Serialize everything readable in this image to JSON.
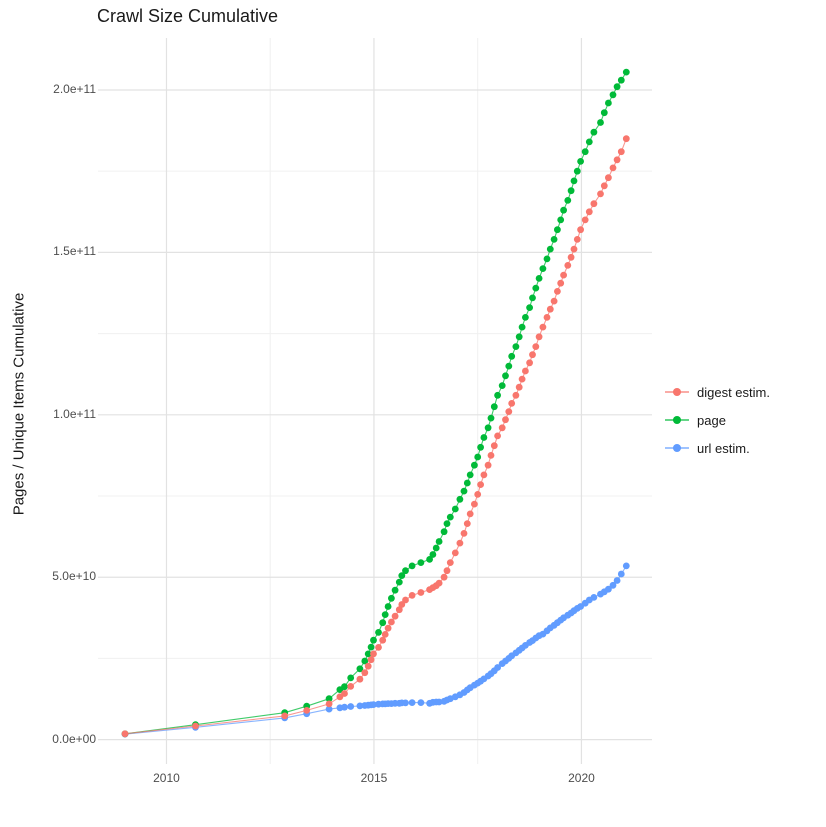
{
  "title": "Crawl Size Cumulative",
  "axes": {
    "y_label": "Pages / Unique Items Cumulative",
    "x_ticks": [
      {
        "label": "2010",
        "value": 2010
      },
      {
        "label": "2015",
        "value": 2015
      },
      {
        "label": "2020",
        "value": 2020
      }
    ],
    "y_ticks": [
      {
        "label": "0.0e+00",
        "value": 0
      },
      {
        "label": "5.0e+10",
        "value": 50000000000.0
      },
      {
        "label": "1.0e+11",
        "value": 100000000000.0
      },
      {
        "label": "1.5e+11",
        "value": 150000000000.0
      },
      {
        "label": "2.0e+11",
        "value": 200000000000.0
      }
    ],
    "x_minor_gridlines": [
      2012.5,
      2017.5
    ],
    "y_minor_gridlines": [
      25000000000.0,
      75000000000.0,
      125000000000.0,
      175000000000.0
    ]
  },
  "legend": {
    "items": [
      {
        "label": "digest estim.",
        "color": "#F8766D"
      },
      {
        "label": "page",
        "color": "#00BA38"
      },
      {
        "label": "url estim.",
        "color": "#619CFF"
      }
    ]
  },
  "colors": {
    "digest": "#F8766D",
    "page": "#00BA38",
    "url": "#619CFF",
    "grid_major": "#E2E2E2",
    "grid_minor": "#F0F0F0",
    "tick_text": "#4d4d4d",
    "title_text": "#1a1a1a",
    "background": "#ffffff"
  },
  "chart_data": {
    "type": "scatter",
    "title": "Crawl Size Cumulative",
    "xlabel": "",
    "ylabel": "Pages / Unique Items Cumulative",
    "xlim": [
      2008.35,
      2021.7
    ],
    "ylim": [
      -7500000000.0,
      216000000000.0
    ],
    "grid": true,
    "legend_position": "right",
    "x": [
      2009.0,
      2010.7,
      2012.85,
      2013.38,
      2013.92,
      2014.18,
      2014.29,
      2014.44,
      2014.66,
      2014.78,
      2014.86,
      2014.93,
      2014.99,
      2015.11,
      2015.21,
      2015.27,
      2015.34,
      2015.42,
      2015.51,
      2015.61,
      2015.67,
      2015.76,
      2015.92,
      2016.13,
      2016.34,
      2016.42,
      2016.5,
      2016.57,
      2016.69,
      2016.76,
      2016.84,
      2016.96,
      2017.07,
      2017.17,
      2017.25,
      2017.32,
      2017.42,
      2017.5,
      2017.57,
      2017.65,
      2017.75,
      2017.82,
      2017.9,
      2017.98,
      2018.09,
      2018.17,
      2018.25,
      2018.32,
      2018.42,
      2018.5,
      2018.57,
      2018.65,
      2018.75,
      2018.82,
      2018.9,
      2018.98,
      2019.07,
      2019.17,
      2019.25,
      2019.34,
      2019.42,
      2019.5,
      2019.57,
      2019.67,
      2019.75,
      2019.82,
      2019.9,
      2019.98,
      2020.09,
      2020.19,
      2020.3,
      2020.46,
      2020.55,
      2020.65,
      2020.76,
      2020.86,
      2020.96,
      2021.08
    ],
    "series": [
      {
        "name": "digest estim.",
        "color": "#F8766D",
        "values": [
          1800000000.0,
          4200000000.0,
          7300000000.0,
          9000000000.0,
          11000000000.0,
          13200000000.0,
          14200000000.0,
          16400000000.0,
          18600000000.0,
          20600000000.0,
          22600000000.0,
          24600000000.0,
          26400000000.0,
          28400000000.0,
          30600000000.0,
          32400000000.0,
          34300000000.0,
          36200000000.0,
          38000000000.0,
          40000000000.0,
          41600000000.0,
          43000000000.0,
          44400000000.0,
          45300000000.0,
          46200000000.0,
          46800000000.0,
          47400000000.0,
          48200000000.0,
          50000000000.0,
          52000000000.0,
          54500000000.0,
          57500000000.0,
          60500000000.0,
          63500000000.0,
          66500000000.0,
          69500000000.0,
          72500000000.0,
          75500000000.0,
          78500000000.0,
          81500000000.0,
          84500000000.0,
          87500000000.0,
          90500000000.0,
          93500000000.0,
          96000000000.0,
          98500000000.0,
          101000000000.0,
          103500000000.0,
          106000000000.0,
          108500000000.0,
          111000000000.0,
          113500000000.0,
          116000000000.0,
          118500000000.0,
          121000000000.0,
          124000000000.0,
          127000000000.0,
          130000000000.0,
          132500000000.0,
          135000000000.0,
          138000000000.0,
          140500000000.0,
          143000000000.0,
          146000000000.0,
          148500000000.0,
          151000000000.0,
          154000000000.0,
          157000000000.0,
          160000000000.0,
          162500000000.0,
          165000000000.0,
          168000000000.0,
          170500000000.0,
          173000000000.0,
          176000000000.0,
          178500000000.0,
          181000000000.0,
          185000000000.0
        ]
      },
      {
        "name": "page",
        "color": "#00BA38",
        "values": [
          1800000000.0,
          4600000000.0,
          8300000000.0,
          10300000000.0,
          12600000000.0,
          15400000000.0,
          16300000000.0,
          19000000000.0,
          21800000000.0,
          24200000000.0,
          26400000000.0,
          28500000000.0,
          30600000000.0,
          33000000000.0,
          36000000000.0,
          38500000000.0,
          41000000000.0,
          43500000000.0,
          46000000000.0,
          48500000000.0,
          50500000000.0,
          52000000000.0,
          53500000000.0,
          54500000000.0,
          55500000000.0,
          57000000000.0,
          59000000000.0,
          61000000000.0,
          64000000000.0,
          66500000000.0,
          68500000000.0,
          71000000000.0,
          74000000000.0,
          76500000000.0,
          79000000000.0,
          81500000000.0,
          84500000000.0,
          87000000000.0,
          90000000000.0,
          93000000000.0,
          96000000000.0,
          99000000000.0,
          102500000000.0,
          106000000000.0,
          109000000000.0,
          112000000000.0,
          115000000000.0,
          118000000000.0,
          121000000000.0,
          124000000000.0,
          127000000000.0,
          130000000000.0,
          133000000000.0,
          136000000000.0,
          139000000000.0,
          142000000000.0,
          145000000000.0,
          148000000000.0,
          151000000000.0,
          154000000000.0,
          157000000000.0,
          160000000000.0,
          163000000000.0,
          166000000000.0,
          169000000000.0,
          172000000000.0,
          175000000000.0,
          178000000000.0,
          181000000000.0,
          184000000000.0,
          187000000000.0,
          190000000000.0,
          193000000000.0,
          196000000000.0,
          198500000000.0,
          201000000000.0,
          203000000000.0,
          205500000000.0
        ]
      },
      {
        "name": "url estim.",
        "color": "#619CFF",
        "values": [
          1700000000.0,
          3800000000.0,
          6700000000.0,
          8000000000.0,
          9400000000.0,
          9800000000.0,
          10000000000.0,
          10200000000.0,
          10400000000.0,
          10500000000.0,
          10600000000.0,
          10700000000.0,
          10800000000.0,
          10900000000.0,
          11000000000.0,
          11000000000.0,
          11100000000.0,
          11100000000.0,
          11200000000.0,
          11200000000.0,
          11300000000.0,
          11300000000.0,
          11400000000.0,
          11400000000.0,
          11200000000.0,
          11500000000.0,
          11600000000.0,
          11600000000.0,
          11800000000.0,
          12200000000.0,
          12600000000.0,
          13200000000.0,
          13800000000.0,
          14500000000.0,
          15300000000.0,
          16000000000.0,
          16800000000.0,
          17400000000.0,
          18000000000.0,
          18700000000.0,
          19600000000.0,
          20300000000.0,
          21200000000.0,
          22200000000.0,
          23400000000.0,
          24200000000.0,
          25000000000.0,
          25800000000.0,
          26700000000.0,
          27500000000.0,
          28200000000.0,
          29000000000.0,
          29900000000.0,
          30500000000.0,
          31300000000.0,
          32000000000.0,
          32500000000.0,
          33500000000.0,
          34400000000.0,
          35200000000.0,
          36000000000.0,
          36800000000.0,
          37500000000.0,
          38300000000.0,
          39000000000.0,
          39700000000.0,
          40400000000.0,
          41000000000.0,
          42000000000.0,
          43000000000.0,
          43800000000.0,
          44800000000.0,
          45500000000.0,
          46300000000.0,
          47500000000.0,
          49000000000.0,
          51000000000.0,
          53500000000.0
        ]
      }
    ]
  }
}
